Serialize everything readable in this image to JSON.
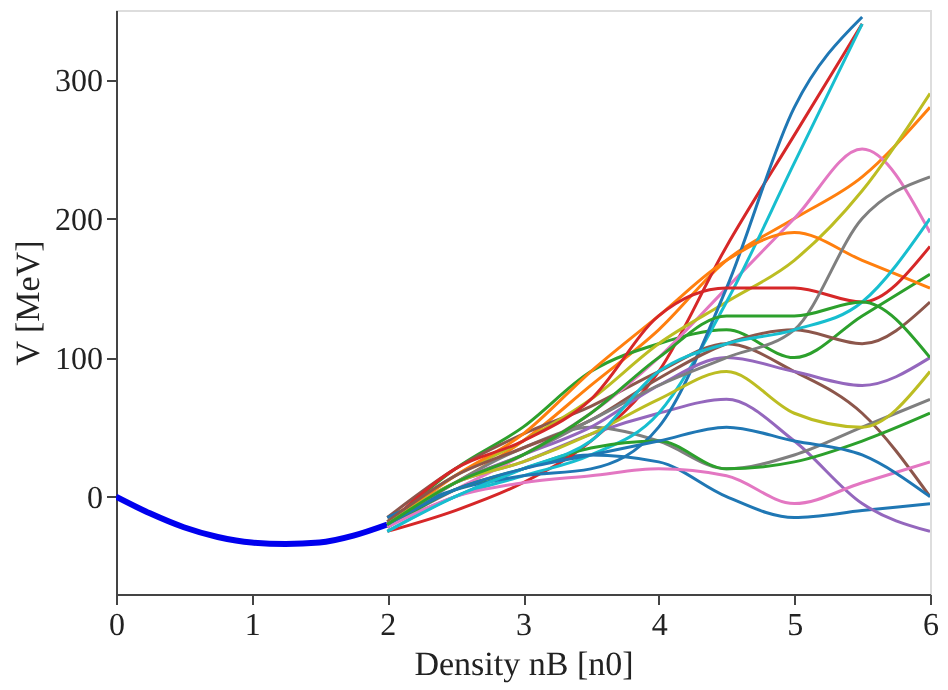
{
  "chart_data": {
    "type": "line",
    "xlabel": "Density nB [n0]",
    "ylabel": "V [MeV]",
    "xlim": [
      0,
      6
    ],
    "xticks": [
      0,
      1,
      2,
      3,
      4,
      5,
      6
    ],
    "ylim": [
      -70,
      350
    ],
    "yticks": [
      0,
      100,
      200,
      300
    ],
    "grid": false,
    "legend": false,
    "marker": "none",
    "line_style": "solid",
    "series": [
      {
        "color": "#0000ee",
        "x": [
          0,
          0.25,
          0.5,
          0.75,
          1,
          1.25,
          1.5,
          1.75,
          2
        ],
        "values": [
          0,
          -12,
          -22,
          -29,
          -33,
          -34,
          -33,
          -28,
          -20
        ]
      },
      {
        "color": "#1f77b4",
        "x": [
          2,
          2.5,
          3,
          3.5,
          4,
          4.5,
          5,
          5.5,
          6
        ],
        "values": [
          -20,
          0,
          20,
          30,
          25,
          0,
          -15,
          -10,
          -5
        ]
      },
      {
        "color": "#ff7f0e",
        "x": [
          2,
          2.5,
          3,
          3.5,
          4,
          4.5,
          5,
          5.5,
          6
        ],
        "values": [
          -15,
          10,
          40,
          80,
          120,
          170,
          200,
          230,
          280
        ]
      },
      {
        "color": "#2ca02c",
        "x": [
          2,
          2.5,
          3,
          3.5,
          4,
          4.5,
          5,
          5.5,
          6
        ],
        "values": [
          -20,
          20,
          50,
          90,
          110,
          120,
          100,
          130,
          160
        ]
      },
      {
        "color": "#d62728",
        "x": [
          2,
          2.5,
          3,
          3.5,
          4,
          4.5,
          5,
          5.5
        ],
        "values": [
          -25,
          -10,
          10,
          40,
          90,
          180,
          260,
          340
        ]
      },
      {
        "color": "#9467bd",
        "x": [
          2,
          2.5,
          3,
          3.5,
          4,
          4.5,
          5,
          5.5,
          6
        ],
        "values": [
          -18,
          10,
          25,
          45,
          60,
          70,
          40,
          -5,
          -25
        ]
      },
      {
        "color": "#8c564b",
        "x": [
          2,
          2.5,
          3,
          3.5,
          4,
          4.5,
          5,
          5.5,
          6
        ],
        "values": [
          -15,
          20,
          45,
          65,
          90,
          110,
          90,
          60,
          0
        ]
      },
      {
        "color": "#e377c2",
        "x": [
          2,
          2.5,
          3,
          3.5,
          4,
          4.5,
          5,
          5.5,
          6
        ],
        "values": [
          -20,
          5,
          30,
          60,
          100,
          150,
          200,
          250,
          190
        ]
      },
      {
        "color": "#7f7f7f",
        "x": [
          2,
          2.5,
          3,
          3.5,
          4,
          4.5,
          5,
          5.5,
          6
        ],
        "values": [
          -22,
          10,
          35,
          50,
          40,
          20,
          30,
          50,
          70
        ]
      },
      {
        "color": "#bcbd22",
        "x": [
          2,
          2.5,
          3,
          3.5,
          4,
          4.5,
          5,
          5.5,
          6
        ],
        "values": [
          -18,
          15,
          40,
          70,
          110,
          140,
          170,
          220,
          290
        ]
      },
      {
        "color": "#17becf",
        "x": [
          2,
          2.5,
          3,
          3.5,
          4,
          4.5,
          5,
          5.5
        ],
        "values": [
          -25,
          0,
          15,
          30,
          60,
          140,
          240,
          340
        ]
      },
      {
        "color": "#1f77b4",
        "x": [
          2,
          2.5,
          3,
          3.5,
          4,
          4.5,
          5,
          5.5
        ],
        "values": [
          -15,
          5,
          15,
          20,
          50,
          150,
          280,
          345
        ]
      },
      {
        "color": "#ff7f0e",
        "x": [
          2,
          2.5,
          3,
          3.5,
          4,
          4.5,
          5,
          5.5,
          6
        ],
        "values": [
          -20,
          15,
          45,
          90,
          130,
          170,
          190,
          170,
          150
        ]
      },
      {
        "color": "#2ca02c",
        "x": [
          2,
          2.5,
          3,
          3.5,
          4,
          4.5,
          5,
          5.5,
          6
        ],
        "values": [
          -22,
          5,
          20,
          35,
          40,
          20,
          25,
          40,
          60
        ]
      },
      {
        "color": "#d62728",
        "x": [
          2,
          2.5,
          3,
          3.5,
          4,
          4.5,
          5,
          5.5,
          6
        ],
        "values": [
          -20,
          20,
          40,
          70,
          130,
          150,
          150,
          140,
          180
        ]
      },
      {
        "color": "#9467bd",
        "x": [
          2,
          2.5,
          3,
          3.5,
          4,
          4.5,
          5,
          5.5,
          6
        ],
        "values": [
          -20,
          10,
          30,
          50,
          80,
          100,
          90,
          80,
          100
        ]
      },
      {
        "color": "#8c564b",
        "x": [
          2,
          2.5,
          3,
          3.5,
          4,
          4.5,
          5,
          5.5,
          6
        ],
        "values": [
          -18,
          15,
          35,
          55,
          85,
          110,
          120,
          110,
          140
        ]
      },
      {
        "color": "#e377c2",
        "x": [
          2,
          2.5,
          3,
          3.5,
          4,
          4.5,
          5,
          5.5,
          6
        ],
        "values": [
          -22,
          0,
          10,
          15,
          20,
          15,
          -5,
          10,
          25
        ]
      },
      {
        "color": "#7f7f7f",
        "x": [
          2,
          2.5,
          3,
          3.5,
          4,
          4.5,
          5,
          5.5,
          6
        ],
        "values": [
          -20,
          10,
          30,
          55,
          80,
          100,
          120,
          200,
          230
        ]
      },
      {
        "color": "#bcbd22",
        "x": [
          2,
          2.5,
          3,
          3.5,
          4,
          4.5,
          5,
          5.5,
          6
        ],
        "values": [
          -20,
          10,
          25,
          45,
          70,
          90,
          60,
          50,
          90
        ]
      },
      {
        "color": "#17becf",
        "x": [
          2,
          2.5,
          3,
          3.5,
          4,
          4.5,
          5,
          5.5,
          6
        ],
        "values": [
          -25,
          0,
          20,
          40,
          90,
          110,
          120,
          140,
          200
        ]
      },
      {
        "color": "#1f77b4",
        "x": [
          2,
          2.5,
          3,
          3.5,
          4,
          4.5,
          5,
          5.5,
          6
        ],
        "values": [
          -20,
          5,
          20,
          30,
          40,
          50,
          40,
          30,
          0
        ]
      },
      {
        "color": "#2ca02c",
        "x": [
          2,
          2.5,
          3,
          3.5,
          4,
          4.5,
          5,
          5.5,
          6
        ],
        "values": [
          -20,
          10,
          30,
          60,
          100,
          130,
          130,
          140,
          100
        ]
      }
    ]
  }
}
